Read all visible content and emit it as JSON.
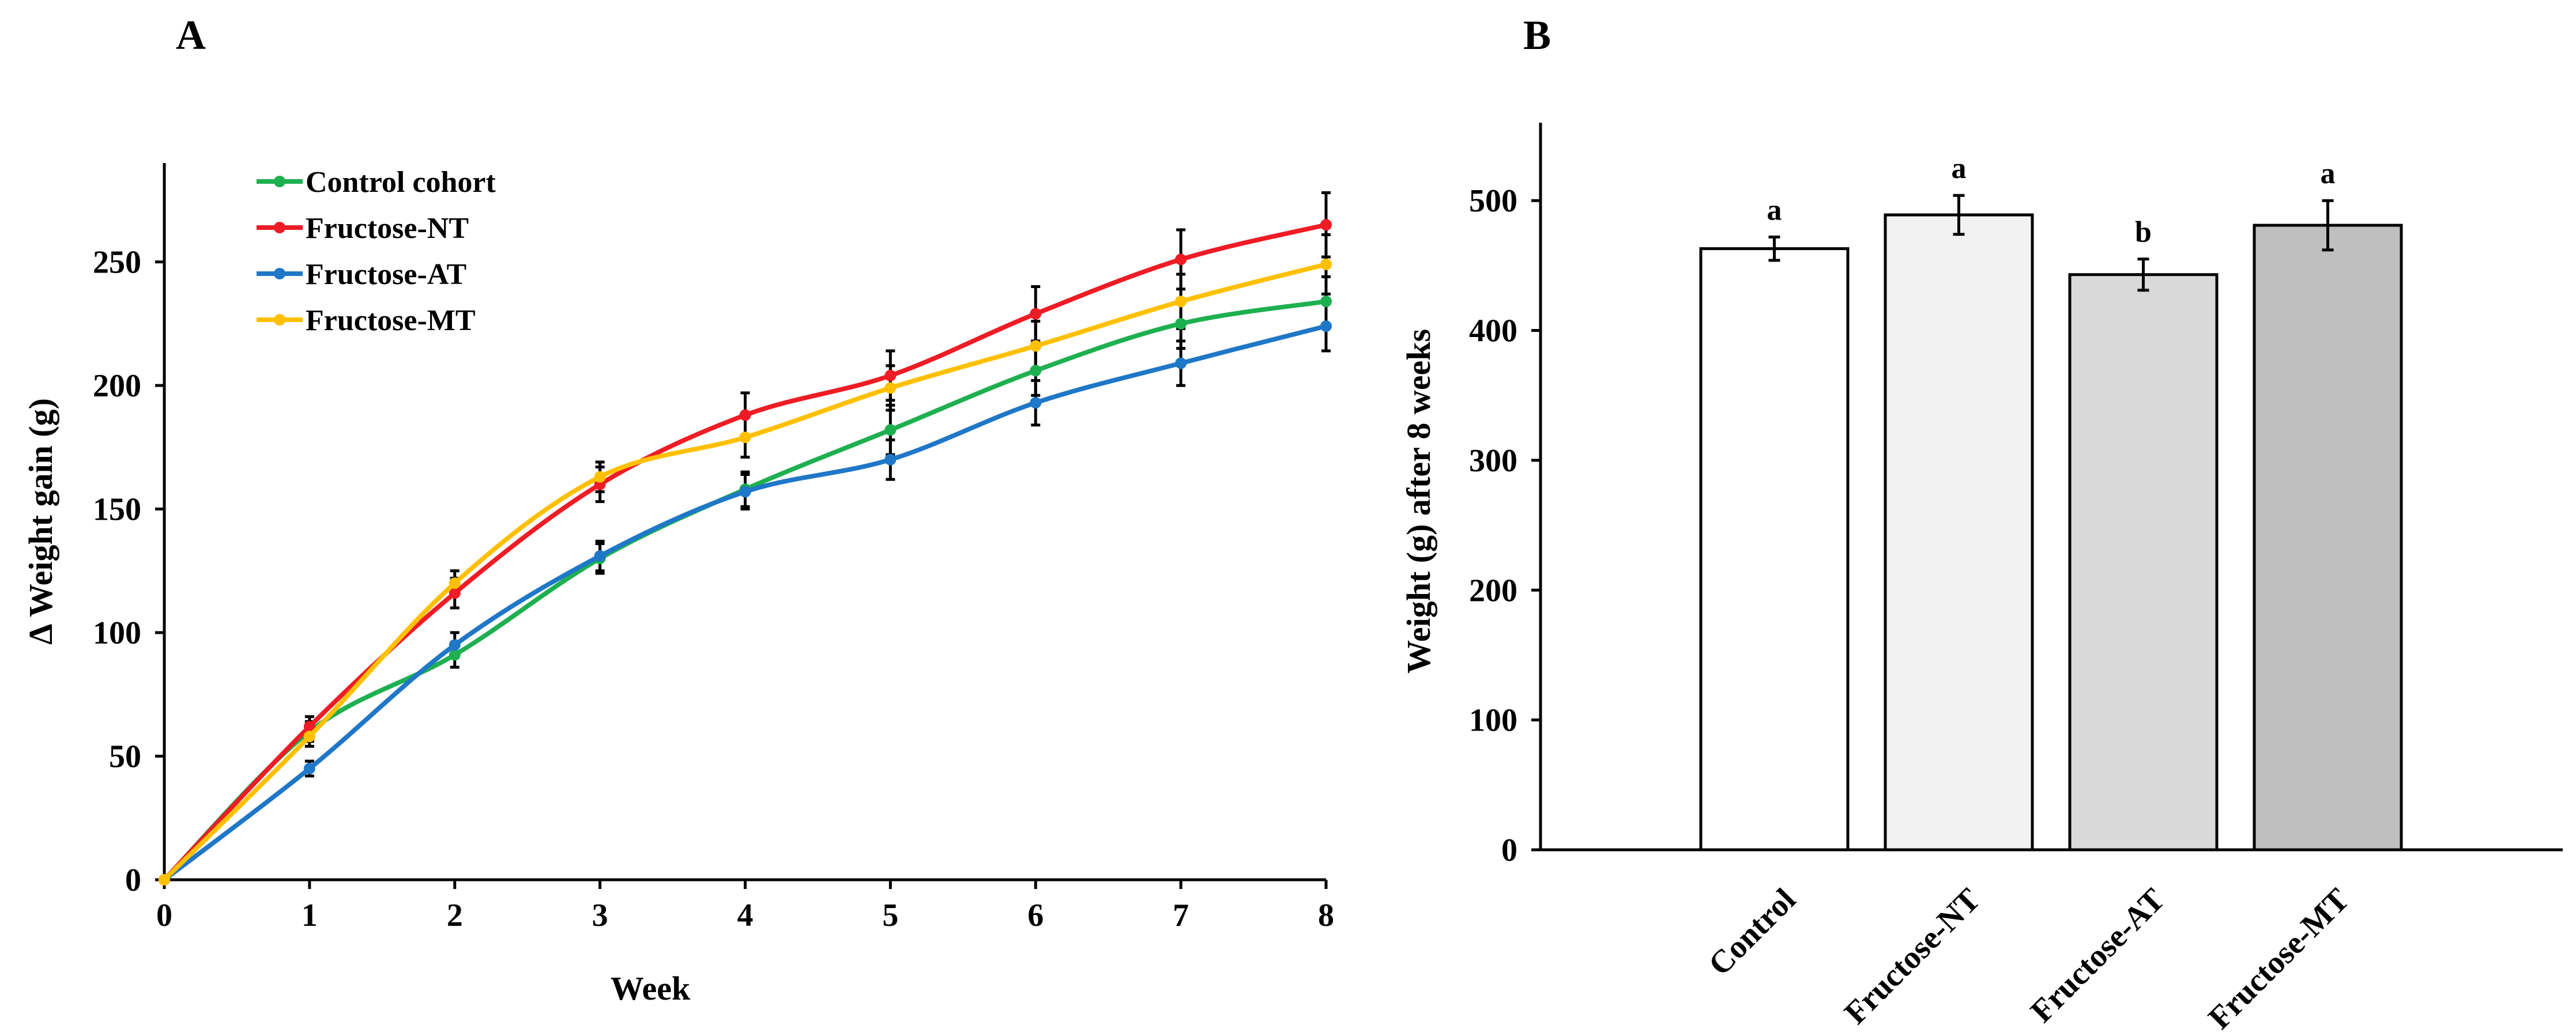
{
  "chart_data": [
    {
      "type": "line",
      "panel_label": "A",
      "title": "",
      "xlabel": "Week",
      "ylabel": "Δ Weight gain (g)",
      "x": [
        0,
        1,
        2,
        3,
        4,
        5,
        6,
        7,
        8
      ],
      "x_ticks": [
        "0",
        "1",
        "2",
        "3",
        "4",
        "5",
        "6",
        "7",
        "8"
      ],
      "xlim": [
        0,
        8
      ],
      "ylim": [
        0,
        290
      ],
      "y_ticks": [
        0,
        50,
        100,
        150,
        200,
        250
      ],
      "legend_position": "top-left",
      "grid": false,
      "series": [
        {
          "name": "Control cohort",
          "color": "#1eb050",
          "values": [
            0,
            60,
            91,
            130,
            158,
            182,
            206,
            225,
            234
          ],
          "errors": [
            0,
            4,
            5,
            6,
            7,
            10,
            10,
            10,
            10
          ]
        },
        {
          "name": "Fructose-NT",
          "color": "#ee1c25",
          "values": [
            0,
            62,
            116,
            160,
            188,
            204,
            229,
            251,
            265
          ],
          "errors": [
            0,
            4,
            6,
            7,
            9,
            10,
            11,
            12,
            13
          ]
        },
        {
          "name": "Fructose-AT",
          "color": "#1f77c8",
          "values": [
            0,
            45,
            95,
            131,
            157,
            170,
            193,
            209,
            224
          ],
          "errors": [
            0,
            3,
            5,
            6,
            7,
            8,
            9,
            9,
            10
          ]
        },
        {
          "name": "Fructose-MT",
          "color": "#ffc000",
          "values": [
            0,
            58,
            120,
            163,
            179,
            199,
            216,
            234,
            249
          ],
          "errors": [
            0,
            4,
            5,
            6,
            8,
            9,
            10,
            11,
            12
          ]
        }
      ]
    },
    {
      "type": "bar",
      "panel_label": "B",
      "title": "",
      "xlabel": "",
      "ylabel": "Weight (g) after 8 weeks",
      "categories": [
        "Control",
        "Fructose-NT",
        "Fructose-AT",
        "Fructose-MT"
      ],
      "values": [
        463,
        489,
        443,
        481
      ],
      "errors": [
        9,
        15,
        12,
        19
      ],
      "significance": [
        "a",
        "a",
        "b",
        "a"
      ],
      "colors": [
        "#ffffff",
        "#f2f2f2",
        "#d9d9d9",
        "#bfbfbf"
      ],
      "ylim": [
        0,
        560
      ],
      "y_ticks": [
        0,
        100,
        200,
        300,
        400,
        500
      ],
      "grid": false
    }
  ]
}
